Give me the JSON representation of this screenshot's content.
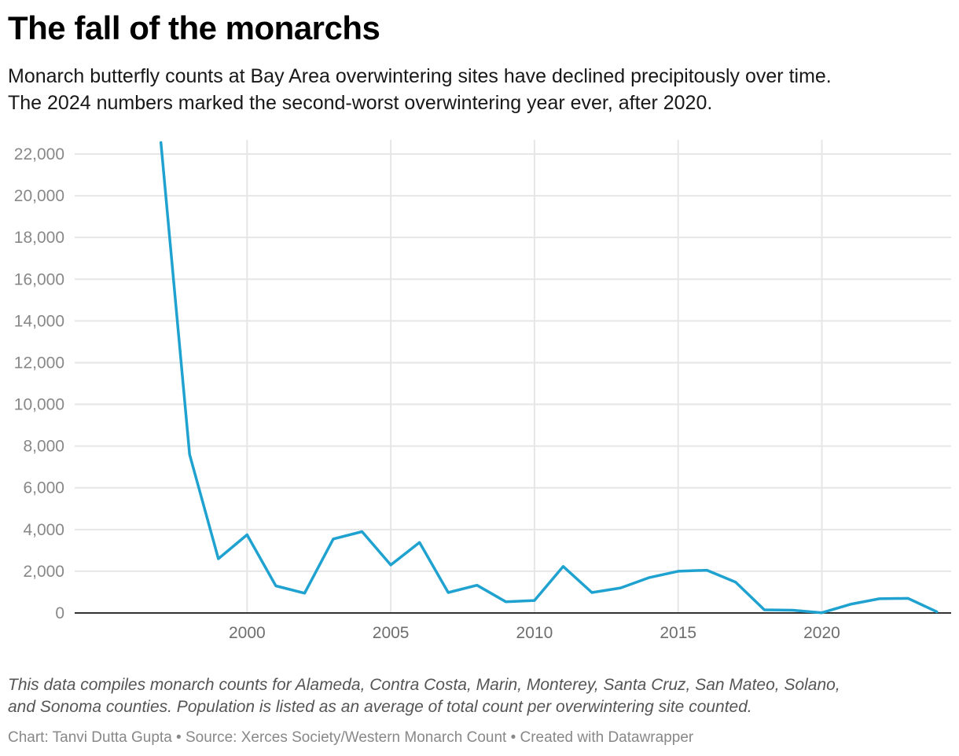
{
  "header": {
    "title": "The fall of the monarchs",
    "subtitle_line1": "Monarch butterfly counts at Bay Area overwintering sites have declined precipitously over time.",
    "subtitle_line2": "The 2024 numbers marked the second-worst overwintering year ever, after 2020."
  },
  "footer": {
    "notes_line1": "This data compiles monarch counts for Alameda, Contra Costa, Marin, Monterey, Santa Cruz, San Mateo, Solano,",
    "notes_line2": "and Sonoma counties. Population is listed as an average of total count per overwintering site counted.",
    "byline": "Chart: Tanvi Dutta Gupta • Source: Xerces Society/Western Monarch Count • Created with Datawrapper"
  },
  "chart_data": {
    "type": "line",
    "title": "The fall of the monarchs",
    "xlabel": "",
    "ylabel": "",
    "x": [
      1997,
      1998,
      1999,
      2000,
      2001,
      2002,
      2003,
      2004,
      2005,
      2006,
      2007,
      2008,
      2009,
      2010,
      2011,
      2012,
      2013,
      2014,
      2015,
      2016,
      2017,
      2018,
      2019,
      2020,
      2021,
      2022,
      2023,
      2024
    ],
    "series": [
      {
        "name": "",
        "values": [
          22550,
          7600,
          2600,
          3750,
          1300,
          950,
          3550,
          3900,
          2300,
          3380,
          980,
          1330,
          540,
          600,
          2230,
          980,
          1200,
          1700,
          2000,
          2050,
          1480,
          150,
          130,
          10,
          420,
          680,
          700,
          60
        ]
      }
    ],
    "xlim": [
      1994,
      2024.5
    ],
    "ylim": [
      0,
      22000
    ],
    "x_ticks": [
      "2000",
      "2005",
      "2010",
      "2015",
      "2020"
    ],
    "y_ticks": [
      "0",
      "2,000",
      "4,000",
      "6,000",
      "8,000",
      "10,000",
      "12,000",
      "14,000",
      "16,000",
      "18,000",
      "20,000",
      "22,000"
    ],
    "grid": true,
    "legend": "none",
    "colors": {
      "line": "#1fa2d0",
      "grid": "#e6e6e6",
      "baseline": "#333333",
      "tick_label": "#888888",
      "x_tick_label": "#6e6e6e"
    }
  }
}
